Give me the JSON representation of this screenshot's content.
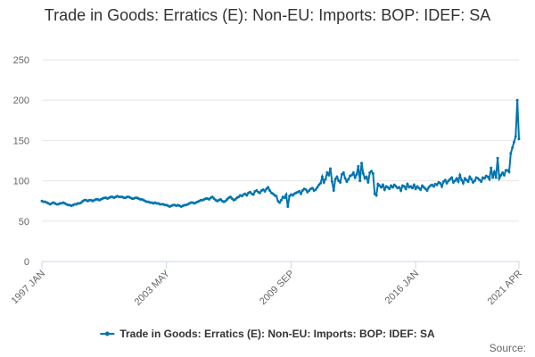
{
  "chart_data": {
    "type": "line",
    "title": "Trade in Goods: Erratics (E): Non-EU: Imports: BOP: IDEF: SA",
    "source": "Source:",
    "categories": [
      "1997 JAN",
      null,
      null,
      null,
      null,
      null,
      null,
      null,
      null,
      null,
      null,
      null,
      null,
      null,
      null,
      null,
      null,
      null,
      null,
      null,
      null,
      null,
      null,
      null,
      null,
      null,
      null,
      null,
      null,
      null,
      null,
      null,
      null,
      null,
      null,
      null,
      null,
      null,
      null,
      null,
      null,
      null,
      null,
      null,
      null,
      null,
      null,
      null,
      null,
      null,
      null,
      null,
      null,
      null,
      null,
      null,
      null,
      null,
      null,
      null,
      null,
      null,
      null,
      null,
      null,
      null,
      null,
      null,
      null,
      null,
      null,
      null,
      null,
      null,
      null,
      null,
      "2003 MAY",
      null,
      null,
      null,
      null,
      null,
      null,
      null,
      null,
      null,
      null,
      null,
      null,
      null,
      null,
      null,
      null,
      null,
      null,
      null,
      null,
      null,
      null,
      null,
      null,
      null,
      null,
      null,
      null,
      null,
      null,
      null,
      null,
      null,
      null,
      null,
      null,
      null,
      null,
      null,
      null,
      null,
      null,
      null,
      null,
      null,
      null,
      null,
      null,
      null,
      null,
      null,
      null,
      null,
      null,
      null,
      null,
      null,
      null,
      null,
      null,
      null,
      null,
      null,
      null,
      null,
      null,
      null,
      null,
      null,
      null,
      null,
      null,
      null,
      null,
      null,
      "2009 SEP",
      null,
      null,
      null,
      null,
      null,
      null,
      null,
      null,
      null,
      null,
      null,
      null,
      null,
      null,
      null,
      null,
      null,
      null,
      null,
      null,
      null,
      null,
      null,
      null,
      null,
      null,
      null,
      null,
      null,
      null,
      null,
      null,
      null,
      null,
      null,
      null,
      null,
      null,
      null,
      null,
      null,
      null,
      null,
      null,
      null,
      null,
      null,
      null,
      null,
      null,
      null,
      null,
      null,
      null,
      null,
      null,
      null,
      null,
      null,
      null,
      null,
      null,
      null,
      null,
      null,
      null,
      null,
      null,
      null,
      null,
      null,
      null,
      null,
      null,
      null,
      "2016 JAN",
      null,
      null,
      null,
      null,
      null,
      null,
      null,
      null,
      null,
      null,
      null,
      null,
      null,
      null,
      null,
      null,
      null,
      null,
      null,
      null,
      null,
      null,
      null,
      null,
      null,
      null,
      null,
      null,
      null,
      null,
      null,
      null,
      null,
      null,
      null,
      null,
      null,
      null,
      null,
      null,
      null,
      null,
      null,
      null,
      null,
      null,
      null,
      null,
      null,
      null,
      null,
      null,
      null,
      null,
      null,
      null,
      null,
      null,
      null,
      null,
      null,
      null,
      "2021 APR"
    ],
    "series": [
      {
        "name": "Trade in Goods: Erratics (E): Non-EU: Imports: BOP: IDEF: SA",
        "color": "#0075b0",
        "values": [
          75,
          74,
          74,
          73,
          72,
          71,
          72,
          73,
          72,
          71,
          71,
          72,
          72,
          73,
          72,
          71,
          70,
          70,
          69,
          70,
          71,
          71,
          72,
          72,
          73,
          75,
          76,
          76,
          75,
          76,
          76,
          75,
          76,
          77,
          77,
          76,
          77,
          78,
          79,
          79,
          78,
          79,
          80,
          80,
          79,
          80,
          81,
          80,
          80,
          80,
          79,
          79,
          80,
          80,
          79,
          78,
          78,
          79,
          79,
          78,
          77,
          77,
          76,
          75,
          74,
          74,
          73,
          73,
          72,
          73,
          72,
          72,
          71,
          71,
          71,
          70,
          70,
          69,
          68,
          69,
          70,
          70,
          69,
          70,
          69,
          68,
          69,
          70,
          70,
          71,
          72,
          73,
          73,
          72,
          73,
          74,
          75,
          76,
          76,
          77,
          78,
          78,
          77,
          79,
          80,
          78,
          76,
          75,
          76,
          77,
          75,
          74,
          75,
          77,
          79,
          80,
          78,
          76,
          77,
          79,
          80,
          82,
          81,
          83,
          84,
          82,
          85,
          86,
          84,
          83,
          87,
          88,
          86,
          85,
          88,
          89,
          87,
          90,
          92,
          88,
          85,
          84,
          82,
          81,
          75,
          73,
          76,
          80,
          79,
          83,
          68,
          81,
          83,
          82,
          84,
          85,
          86,
          87,
          84,
          88,
          90,
          89,
          86,
          88,
          90,
          91,
          88,
          89,
          92,
          95,
          97,
          105,
          98,
          102,
          110,
          107,
          115,
          99,
          88,
          102,
          105,
          100,
          98,
          108,
          110,
          103,
          99,
          102,
          106,
          107,
          110,
          104,
          108,
          118,
          100,
          122,
          109,
          103,
          105,
          98,
          110,
          112,
          109,
          84,
          82,
          96,
          94,
          92,
          95,
          89,
          93,
          92,
          90,
          94,
          92,
          95,
          93,
          91,
          92,
          88,
          94,
          93,
          90,
          96,
          92,
          93,
          91,
          95,
          90,
          93,
          91,
          89,
          94,
          92,
          90,
          88,
          92,
          94,
          95,
          93,
          96,
          95,
          98,
          97,
          93,
          99,
          101,
          97,
          100,
          102,
          104,
          98,
          100,
          103,
          99,
          107,
          101,
          97,
          103,
          101,
          99,
          105,
          102,
          98,
          100,
          104,
          103,
          101,
          99,
          104,
          103,
          106,
          105,
          102,
          116,
          104,
          111,
          104,
          128,
          103,
          107,
          110,
          107,
          113,
          113,
          111,
          134,
          141,
          148,
          155,
          200,
          152
        ]
      }
    ],
    "ylim": [
      0,
      250
    ],
    "yticks": [
      0,
      50,
      100,
      150,
      200,
      250
    ],
    "grid": true,
    "legend": "bottom"
  }
}
